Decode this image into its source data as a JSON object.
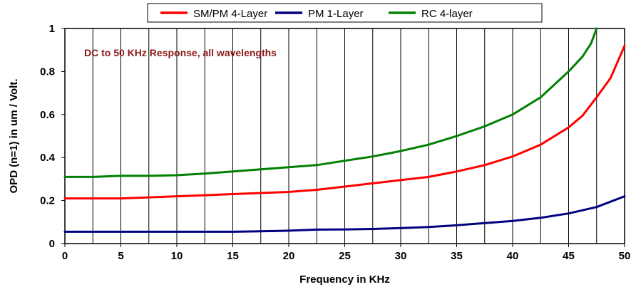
{
  "chart_data": {
    "type": "line",
    "xlabel": "Frequency in KHz",
    "ylabel": "OPD (n=1) in um / Volt.",
    "annotation": "DC to 50 KHz Response, all wavelengths",
    "xlim": [
      0,
      50
    ],
    "ylim": [
      0,
      1
    ],
    "x_ticks": [
      0,
      5,
      10,
      15,
      20,
      25,
      30,
      35,
      40,
      45,
      50
    ],
    "y_ticks": [
      0,
      0.2,
      0.4,
      0.6,
      0.8,
      1
    ],
    "x_tick_labels": [
      "0",
      "5",
      "10",
      "15",
      "20",
      "25",
      "30",
      "35",
      "40",
      "45",
      "50"
    ],
    "y_tick_labels": [
      "0",
      "0.2",
      "0.4",
      "0.6",
      "0.8",
      "1"
    ],
    "x_minor_step": 2.5,
    "grid": "vertical",
    "legend_position": "top",
    "series": [
      {
        "name": "SM/PM 4-Layer",
        "color": "#ff0000",
        "x": [
          0,
          2.5,
          5,
          7.5,
          10,
          12.5,
          15,
          17.5,
          20,
          22.5,
          25,
          27.5,
          30,
          32.5,
          35,
          37.5,
          40,
          42.5,
          45,
          46.25,
          47.5,
          48.75,
          50
        ],
        "y": [
          0.21,
          0.21,
          0.21,
          0.215,
          0.22,
          0.225,
          0.23,
          0.235,
          0.24,
          0.25,
          0.265,
          0.28,
          0.295,
          0.31,
          0.335,
          0.365,
          0.405,
          0.46,
          0.54,
          0.595,
          0.68,
          0.77,
          0.92
        ]
      },
      {
        "name": "PM 1-Layer",
        "color": "#000080",
        "x": [
          0,
          2.5,
          5,
          7.5,
          10,
          12.5,
          15,
          17.5,
          20,
          22.5,
          25,
          27.5,
          30,
          32.5,
          35,
          37.5,
          40,
          42.5,
          45,
          47.5,
          50
        ],
        "y": [
          0.055,
          0.055,
          0.055,
          0.055,
          0.055,
          0.055,
          0.055,
          0.057,
          0.06,
          0.065,
          0.066,
          0.068,
          0.072,
          0.077,
          0.085,
          0.095,
          0.105,
          0.12,
          0.14,
          0.17,
          0.22
        ]
      },
      {
        "name": "RC 4-layer",
        "color": "#008000",
        "x": [
          0,
          2.5,
          5,
          7.5,
          10,
          12.5,
          15,
          17.5,
          20,
          22.5,
          25,
          27.5,
          30,
          32.5,
          35,
          37.5,
          40,
          42.5,
          45,
          46.25,
          47,
          47.5
        ],
        "y": [
          0.31,
          0.31,
          0.315,
          0.315,
          0.318,
          0.325,
          0.335,
          0.345,
          0.355,
          0.365,
          0.385,
          0.405,
          0.43,
          0.46,
          0.5,
          0.545,
          0.6,
          0.68,
          0.8,
          0.87,
          0.93,
          1.0
        ]
      }
    ]
  }
}
